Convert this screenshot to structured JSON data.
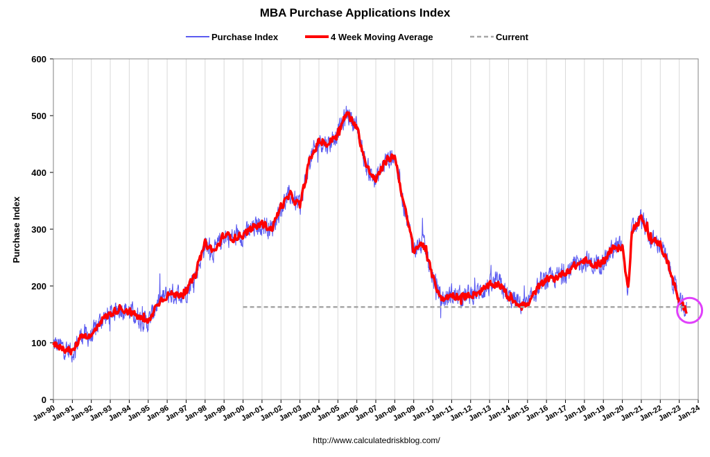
{
  "chart_data": {
    "type": "line",
    "title": "MBA Purchase Applications Index",
    "ylabel": "Purchase Index",
    "xlabel": "",
    "ylim": [
      0,
      600
    ],
    "yticks": [
      0,
      100,
      200,
      300,
      400,
      500,
      600
    ],
    "xlim": [
      1990,
      2024
    ],
    "x_tick_labels": [
      "Jan-90",
      "Jan-91",
      "Jan-92",
      "Jan-93",
      "Jan-94",
      "Jan-95",
      "Jan-96",
      "Jan-97",
      "Jan-98",
      "Jan-99",
      "Jan-00",
      "Jan-01",
      "Jan-02",
      "Jan-03",
      "Jan-04",
      "Jan-05",
      "Jan-06",
      "Jan-07",
      "Jan-08",
      "Jan-09",
      "Jan-10",
      "Jan-11",
      "Jan-12",
      "Jan-13",
      "Jan-14",
      "Jan-15",
      "Jan-16",
      "Jan-17",
      "Jan-18",
      "Jan-19",
      "Jan-20",
      "Jan-21",
      "Jan-22",
      "Jan-23",
      "Jan-24"
    ],
    "grid": "vertical",
    "legend_placement": "top-center",
    "series": [
      {
        "name": "Purchase Index",
        "color": "#5b5bf0",
        "x": [
          1990.0,
          1990.5,
          1991.0,
          1991.5,
          1992.0,
          1992.5,
          1993.0,
          1993.5,
          1994.0,
          1994.5,
          1995.0,
          1995.5,
          1996.0,
          1996.5,
          1997.0,
          1997.5,
          1998.0,
          1998.5,
          1999.0,
          1999.5,
          2000.0,
          2000.5,
          2001.0,
          2001.5,
          2002.0,
          2002.5,
          2003.0,
          2003.5,
          2004.0,
          2004.5,
          2005.0,
          2005.5,
          2006.0,
          2006.5,
          2007.0,
          2007.5,
          2008.0,
          2008.5,
          2009.0,
          2009.5,
          2010.0,
          2010.5,
          2011.0,
          2011.5,
          2012.0,
          2012.5,
          2013.0,
          2013.5,
          2014.0,
          2014.5,
          2015.0,
          2015.5,
          2016.0,
          2016.5,
          2017.0,
          2017.5,
          2018.0,
          2018.5,
          2019.0,
          2019.5,
          2020.0,
          2020.3,
          2020.5,
          2020.8,
          2021.0,
          2021.5,
          2022.0,
          2022.5,
          2023.0,
          2023.4
        ],
        "values": [
          98,
          92,
          83,
          115,
          110,
          140,
          150,
          162,
          155,
          145,
          135,
          170,
          185,
          185,
          190,
          220,
          275,
          260,
          290,
          285,
          290,
          300,
          310,
          300,
          340,
          360,
          340,
          420,
          455,
          450,
          470,
          505,
          480,
          410,
          385,
          420,
          430,
          340,
          265,
          275,
          215,
          175,
          185,
          180,
          185,
          190,
          200,
          205,
          180,
          170,
          165,
          195,
          210,
          215,
          225,
          235,
          245,
          235,
          245,
          265,
          270,
          190,
          300,
          310,
          320,
          280,
          275,
          230,
          170,
          155
        ],
        "noise": 16
      },
      {
        "name": "4 Week Moving Average",
        "color": "#ff0000",
        "x": [
          1990.0,
          1990.5,
          1991.0,
          1991.5,
          1992.0,
          1992.5,
          1993.0,
          1993.5,
          1994.0,
          1994.5,
          1995.0,
          1995.5,
          1996.0,
          1996.5,
          1997.0,
          1997.5,
          1998.0,
          1998.5,
          1999.0,
          1999.5,
          2000.0,
          2000.5,
          2001.0,
          2001.5,
          2002.0,
          2002.5,
          2003.0,
          2003.5,
          2004.0,
          2004.5,
          2005.0,
          2005.5,
          2006.0,
          2006.5,
          2007.0,
          2007.5,
          2008.0,
          2008.5,
          2009.0,
          2009.5,
          2010.0,
          2010.5,
          2011.0,
          2011.5,
          2012.0,
          2012.5,
          2013.0,
          2013.5,
          2014.0,
          2014.5,
          2015.0,
          2015.5,
          2016.0,
          2016.5,
          2017.0,
          2017.5,
          2018.0,
          2018.5,
          2019.0,
          2019.5,
          2020.0,
          2020.3,
          2020.5,
          2020.8,
          2021.0,
          2021.5,
          2022.0,
          2022.5,
          2023.0,
          2023.4
        ],
        "values": [
          98,
          92,
          83,
          115,
          110,
          140,
          150,
          162,
          155,
          145,
          135,
          170,
          185,
          185,
          190,
          220,
          275,
          260,
          290,
          285,
          290,
          300,
          310,
          300,
          340,
          360,
          340,
          420,
          455,
          450,
          470,
          505,
          480,
          410,
          385,
          420,
          430,
          340,
          265,
          275,
          215,
          175,
          185,
          180,
          185,
          190,
          200,
          205,
          180,
          170,
          165,
          195,
          210,
          215,
          225,
          235,
          245,
          235,
          245,
          265,
          270,
          190,
          300,
          310,
          320,
          280,
          275,
          230,
          170,
          155
        ],
        "noise": 6
      },
      {
        "name": "Current",
        "color": "#a6a6a6",
        "x": [
          2000.0,
          2023.6
        ],
        "values": [
          163,
          163
        ]
      }
    ],
    "annotations": [
      {
        "type": "circle",
        "x": 2023.4,
        "y": 157,
        "color": "#e040fb"
      }
    ]
  },
  "footer": {
    "url": "http://www.calculatedriskblog.com/"
  }
}
